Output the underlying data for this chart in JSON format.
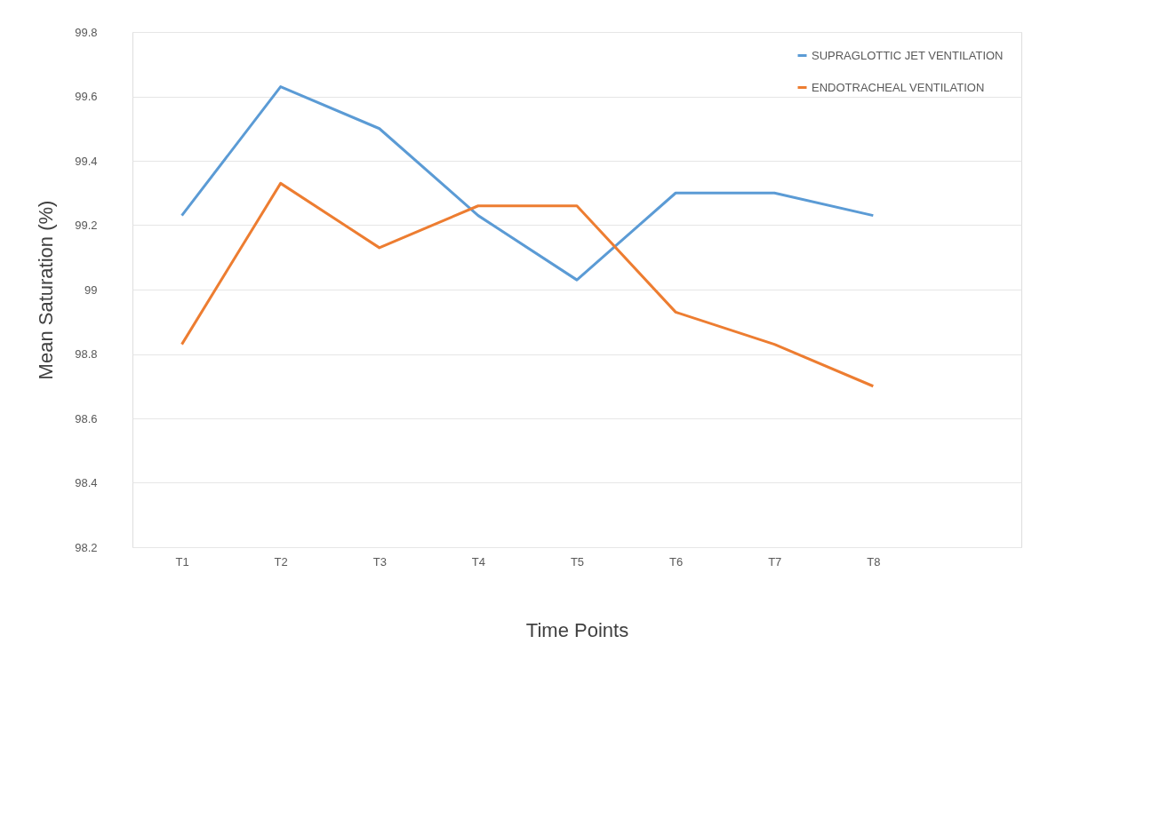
{
  "chart_data": {
    "type": "line",
    "xlabel": "Time Points",
    "ylabel": "Mean Saturation (%)",
    "categories": [
      "T1",
      "T2",
      "T3",
      "T4",
      "T5",
      "T6",
      "T7",
      "T8",
      null
    ],
    "series": [
      {
        "name": "SUPRAGLOTTIC JET VENTILATION",
        "color": "#5b9bd5",
        "values": [
          99.23,
          99.63,
          99.5,
          99.23,
          99.03,
          99.3,
          99.3,
          99.23,
          null
        ]
      },
      {
        "name": "ENDOTRACHEAL VENTILATION",
        "color": "#ed7d31",
        "values": [
          98.83,
          99.33,
          99.13,
          99.26,
          99.26,
          98.93,
          98.83,
          98.7,
          null
        ]
      }
    ],
    "ylim": [
      98.2,
      99.8
    ],
    "yticks": [
      98.2,
      98.4,
      98.6,
      98.8,
      99,
      99.2,
      99.4,
      99.6,
      99.8
    ],
    "grid": "y",
    "legend": "top right",
    "marker": "none",
    "line_style": "solid"
  }
}
